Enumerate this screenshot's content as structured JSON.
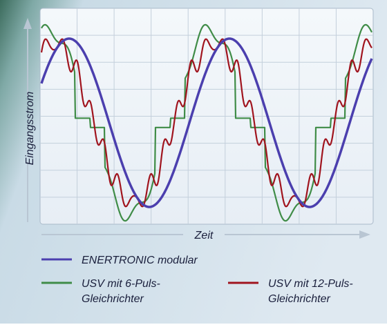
{
  "axis_labels": {
    "y": "Eingangsstrom",
    "x": "Zeit"
  },
  "legend": [
    {
      "label": [
        "ENERTRONIC modular"
      ],
      "color": "#4b3fae"
    },
    {
      "label": [
        "USV mit 6-Puls-",
        "Gleichrichter"
      ],
      "color": "#3f8c47"
    },
    {
      "label": [
        "USV mit 12-Puls-",
        "Gleichrichter"
      ],
      "color": "#a0141e"
    }
  ]
}
